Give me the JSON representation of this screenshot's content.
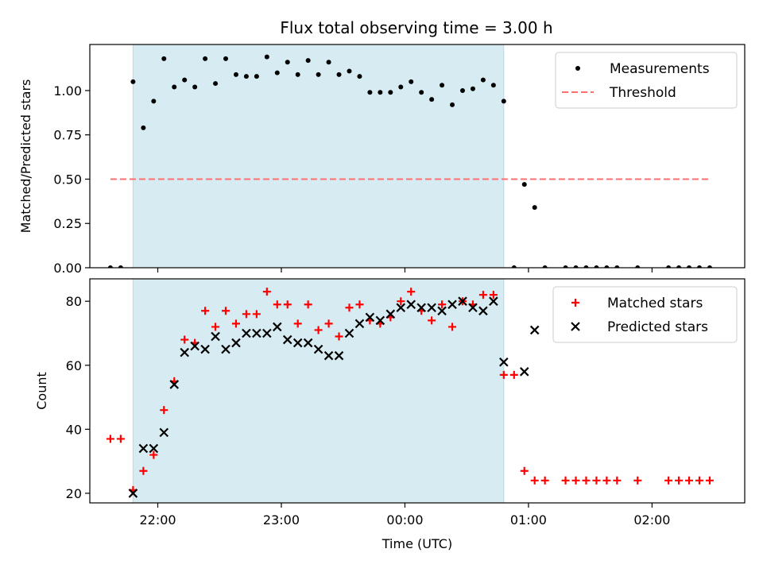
{
  "figure_title": "Flux total observing time = 3.00 h",
  "chart_data": [
    {
      "type": "scatter",
      "panel": "top",
      "ylabel": "Matched/Predicted stars",
      "xlabel": "",
      "xlim": [
        "21:27",
        "02:45"
      ],
      "ylim": [
        0,
        1.26
      ],
      "yticks": [
        "0.00",
        "0.25",
        "0.50",
        "0.75",
        "1.00"
      ],
      "xticks": [
        "22:00",
        "23:00",
        "00:00",
        "01:00",
        "02:00"
      ],
      "xtick_labels_visible": false,
      "shaded_span": [
        "21:48",
        "00:48"
      ],
      "shade_color": "#add8e6",
      "legend_position": "top-right",
      "series": [
        {
          "name": "Measurements",
          "marker": "dot",
          "color": "#000000",
          "points": [
            [
              "21:37",
              0.0
            ],
            [
              "21:42",
              0.0
            ],
            [
              "21:48",
              1.05
            ],
            [
              "21:53",
              0.79
            ],
            [
              "21:58",
              0.94
            ],
            [
              "22:03",
              1.18
            ],
            [
              "22:08",
              1.02
            ],
            [
              "22:13",
              1.06
            ],
            [
              "22:18",
              1.02
            ],
            [
              "22:23",
              1.18
            ],
            [
              "22:28",
              1.04
            ],
            [
              "22:33",
              1.18
            ],
            [
              "22:38",
              1.09
            ],
            [
              "22:43",
              1.08
            ],
            [
              "22:48",
              1.08
            ],
            [
              "22:53",
              1.19
            ],
            [
              "22:58",
              1.1
            ],
            [
              "23:03",
              1.16
            ],
            [
              "23:08",
              1.09
            ],
            [
              "23:13",
              1.17
            ],
            [
              "23:18",
              1.09
            ],
            [
              "23:23",
              1.16
            ],
            [
              "23:28",
              1.09
            ],
            [
              "23:33",
              1.11
            ],
            [
              "23:38",
              1.08
            ],
            [
              "23:43",
              0.99
            ],
            [
              "23:48",
              0.99
            ],
            [
              "23:53",
              0.99
            ],
            [
              "23:58",
              1.02
            ],
            [
              "00:03",
              1.05
            ],
            [
              "00:08",
              0.99
            ],
            [
              "00:13",
              0.95
            ],
            [
              "00:18",
              1.03
            ],
            [
              "00:23",
              0.92
            ],
            [
              "00:28",
              1.0
            ],
            [
              "00:33",
              1.01
            ],
            [
              "00:38",
              1.06
            ],
            [
              "00:43",
              1.03
            ],
            [
              "00:48",
              0.94
            ],
            [
              "00:53",
              0.0
            ],
            [
              "00:58",
              0.47
            ],
            [
              "01:03",
              0.34
            ],
            [
              "01:08",
              0.0
            ],
            [
              "01:18",
              0.0
            ],
            [
              "01:23",
              0.0
            ],
            [
              "01:28",
              0.0
            ],
            [
              "01:33",
              0.0
            ],
            [
              "01:38",
              0.0
            ],
            [
              "01:43",
              0.0
            ],
            [
              "01:53",
              0.0
            ],
            [
              "02:08",
              0.0
            ],
            [
              "02:13",
              0.0
            ],
            [
              "02:18",
              0.0
            ],
            [
              "02:23",
              0.0
            ],
            [
              "02:28",
              0.0
            ]
          ]
        },
        {
          "name": "Threshold",
          "type": "line",
          "style": "dashed",
          "color": "#ff6f6f",
          "points": [
            [
              "21:37",
              0.5
            ],
            [
              "02:28",
              0.5
            ]
          ]
        }
      ]
    },
    {
      "type": "scatter",
      "panel": "bottom",
      "ylabel": "Count",
      "xlabel": "Time (UTC)",
      "xlim": [
        "21:27",
        "02:45"
      ],
      "ylim": [
        17,
        87
      ],
      "yticks": [
        "20",
        "40",
        "60",
        "80"
      ],
      "xticks": [
        "22:00",
        "23:00",
        "00:00",
        "01:00",
        "02:00"
      ],
      "xtick_labels_visible": true,
      "shaded_span": [
        "21:48",
        "00:48"
      ],
      "shade_color": "#add8e6",
      "legend_position": "top-right",
      "series": [
        {
          "name": "Matched stars",
          "marker": "plus",
          "color": "#ff0000",
          "points": [
            [
              "21:37",
              37
            ],
            [
              "21:42",
              37
            ],
            [
              "21:48",
              21
            ],
            [
              "21:53",
              27
            ],
            [
              "21:58",
              32
            ],
            [
              "22:03",
              46
            ],
            [
              "22:08",
              55
            ],
            [
              "22:13",
              68
            ],
            [
              "22:18",
              67
            ],
            [
              "22:23",
              77
            ],
            [
              "22:28",
              72
            ],
            [
              "22:33",
              77
            ],
            [
              "22:38",
              73
            ],
            [
              "22:43",
              76
            ],
            [
              "22:48",
              76
            ],
            [
              "22:53",
              83
            ],
            [
              "22:58",
              79
            ],
            [
              "23:03",
              79
            ],
            [
              "23:08",
              73
            ],
            [
              "23:13",
              79
            ],
            [
              "23:18",
              71
            ],
            [
              "23:23",
              73
            ],
            [
              "23:28",
              69
            ],
            [
              "23:33",
              78
            ],
            [
              "23:38",
              79
            ],
            [
              "23:43",
              74
            ],
            [
              "23:48",
              73
            ],
            [
              "23:53",
              75
            ],
            [
              "23:58",
              80
            ],
            [
              "00:03",
              83
            ],
            [
              "00:08",
              77
            ],
            [
              "00:13",
              74
            ],
            [
              "00:18",
              79
            ],
            [
              "00:23",
              72
            ],
            [
              "00:28",
              80
            ],
            [
              "00:33",
              79
            ],
            [
              "00:38",
              82
            ],
            [
              "00:43",
              82
            ],
            [
              "00:48",
              57
            ],
            [
              "00:53",
              57
            ],
            [
              "00:58",
              27
            ],
            [
              "01:03",
              24
            ],
            [
              "01:08",
              24
            ],
            [
              "01:18",
              24
            ],
            [
              "01:23",
              24
            ],
            [
              "01:28",
              24
            ],
            [
              "01:33",
              24
            ],
            [
              "01:38",
              24
            ],
            [
              "01:43",
              24
            ],
            [
              "01:53",
              24
            ],
            [
              "02:08",
              24
            ],
            [
              "02:13",
              24
            ],
            [
              "02:18",
              24
            ],
            [
              "02:23",
              24
            ],
            [
              "02:28",
              24
            ]
          ]
        },
        {
          "name": "Predicted stars",
          "marker": "x",
          "color": "#000000",
          "points": [
            [
              "21:48",
              20
            ],
            [
              "21:53",
              34
            ],
            [
              "21:58",
              34
            ],
            [
              "22:03",
              39
            ],
            [
              "22:08",
              54
            ],
            [
              "22:13",
              64
            ],
            [
              "22:18",
              66
            ],
            [
              "22:23",
              65
            ],
            [
              "22:28",
              69
            ],
            [
              "22:33",
              65
            ],
            [
              "22:38",
              67
            ],
            [
              "22:43",
              70
            ],
            [
              "22:48",
              70
            ],
            [
              "22:53",
              70
            ],
            [
              "22:58",
              72
            ],
            [
              "23:03",
              68
            ],
            [
              "23:08",
              67
            ],
            [
              "23:13",
              67
            ],
            [
              "23:18",
              65
            ],
            [
              "23:23",
              63
            ],
            [
              "23:28",
              63
            ],
            [
              "23:33",
              70
            ],
            [
              "23:38",
              73
            ],
            [
              "23:43",
              75
            ],
            [
              "23:48",
              74
            ],
            [
              "23:53",
              76
            ],
            [
              "23:58",
              78
            ],
            [
              "00:03",
              79
            ],
            [
              "00:08",
              78
            ],
            [
              "00:13",
              78
            ],
            [
              "00:18",
              77
            ],
            [
              "00:23",
              79
            ],
            [
              "00:28",
              80
            ],
            [
              "00:33",
              78
            ],
            [
              "00:38",
              77
            ],
            [
              "00:43",
              80
            ],
            [
              "00:48",
              61
            ],
            [
              "00:58",
              58
            ],
            [
              "01:03",
              71
            ]
          ]
        }
      ]
    }
  ]
}
